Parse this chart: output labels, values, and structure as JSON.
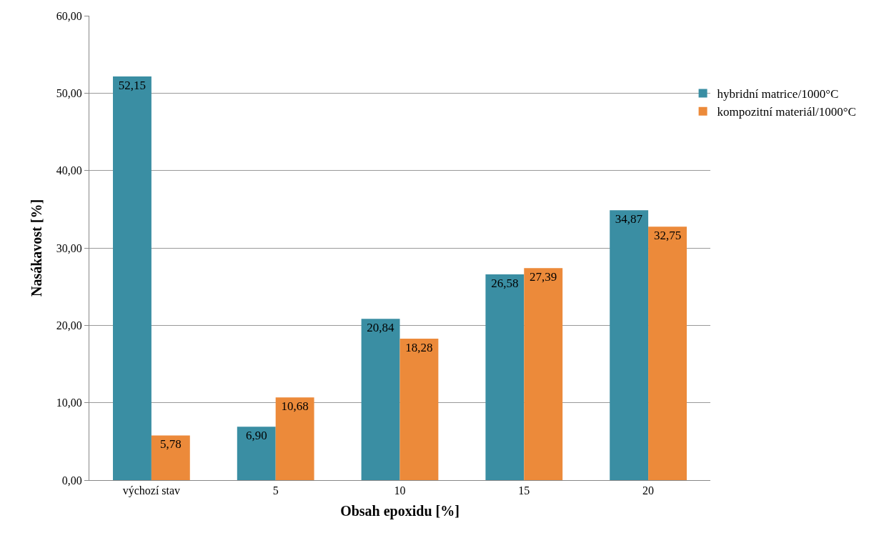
{
  "chart_data": {
    "type": "bar",
    "xlabel": "Obsah epoxidu [%]",
    "ylabel": "Nasákavost [%]",
    "categories": [
      "výchozí stav",
      "5",
      "10",
      "15",
      "20"
    ],
    "series": [
      {
        "name": "hybridní matrice/1000°C",
        "color": "#3a8ea3",
        "values": [
          52.15,
          6.9,
          20.84,
          26.58,
          34.87
        ],
        "value_labels": [
          "52,15",
          "6,90",
          "20,84",
          "26,58",
          "34,87"
        ]
      },
      {
        "name": "kompozitní materiál/1000°C",
        "color": "#ec8a3a",
        "values": [
          5.78,
          10.68,
          18.28,
          27.39,
          32.75
        ],
        "value_labels": [
          "5,78",
          "10,68",
          "18,28",
          "27,39",
          "32,75"
        ]
      }
    ],
    "ylim": [
      0,
      60
    ],
    "yticks": [
      {
        "value": 0,
        "label": "0,00"
      },
      {
        "value": 10,
        "label": "10,00"
      },
      {
        "value": 20,
        "label": "20,00"
      },
      {
        "value": 30,
        "label": "30,00"
      },
      {
        "value": 40,
        "label": "40,00"
      },
      {
        "value": 50,
        "label": "50,00"
      },
      {
        "value": 60,
        "label": "60,00"
      }
    ],
    "grid": "y",
    "legend": "top right"
  }
}
